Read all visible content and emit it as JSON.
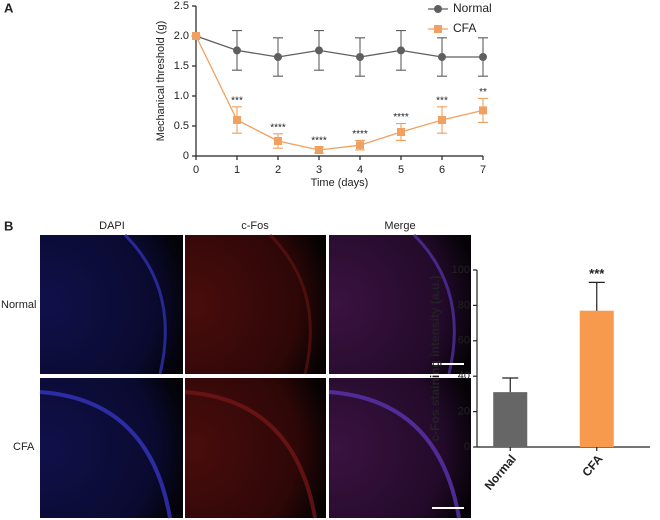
{
  "panel_labels": [
    "A",
    "B"
  ],
  "images": {
    "columns": [
      "DAPI",
      "c-Fos",
      "Merge"
    ],
    "column_colors": [
      "#3a3ad0",
      "#d02020",
      "#222222"
    ],
    "rows": [
      "Normal",
      "CFA"
    ]
  },
  "chart_data": [
    {
      "type": "line",
      "ylabel": "Mechanical threshold (g)",
      "xlabel": "Time (days)",
      "x": [
        0,
        1,
        2,
        3,
        4,
        5,
        6,
        7
      ],
      "xlim": [
        0,
        7
      ],
      "xticks": [
        0,
        1,
        2,
        3,
        4,
        5,
        6,
        7
      ],
      "ylim": [
        0,
        2.5
      ],
      "yticks": [
        0,
        0.5,
        {
          "value": 1,
          "label": "1.0"
        },
        1.5,
        {
          "value": 2,
          "label": "2.0"
        },
        2.5
      ],
      "legend": "upper right",
      "series": [
        {
          "name": "Normal",
          "color": "#5f5f5f",
          "marker": "circle",
          "values": [
            2.0,
            1.76,
            1.65,
            1.76,
            1.65,
            1.76,
            1.65,
            1.65
          ],
          "errors": [
            0,
            0.33,
            0.32,
            0.33,
            0.32,
            0.33,
            0.32,
            0.32
          ]
        },
        {
          "name": "CFA",
          "color": "#f0a060",
          "marker": "square",
          "values": [
            2.0,
            0.6,
            0.25,
            0.1,
            0.18,
            0.4,
            0.6,
            0.76
          ],
          "errors": [
            0,
            0.22,
            0.12,
            0.05,
            0.08,
            0.14,
            0.22,
            0.2
          ],
          "significance": [
            null,
            "***",
            "****",
            "****",
            "****",
            "****",
            "***",
            "**"
          ]
        }
      ]
    },
    {
      "type": "bar",
      "ylabel": "c-Fos staining intensity (a.u.)",
      "categories": [
        "Normal",
        "CFA"
      ],
      "values": [
        31,
        77
      ],
      "errors": [
        8,
        16
      ],
      "colors": [
        "#666666",
        "#f79a4e"
      ],
      "significance": [
        null,
        "***"
      ],
      "ylim": [
        0,
        100
      ],
      "yticks": [
        0,
        20,
        40,
        60,
        80,
        100
      ]
    }
  ]
}
